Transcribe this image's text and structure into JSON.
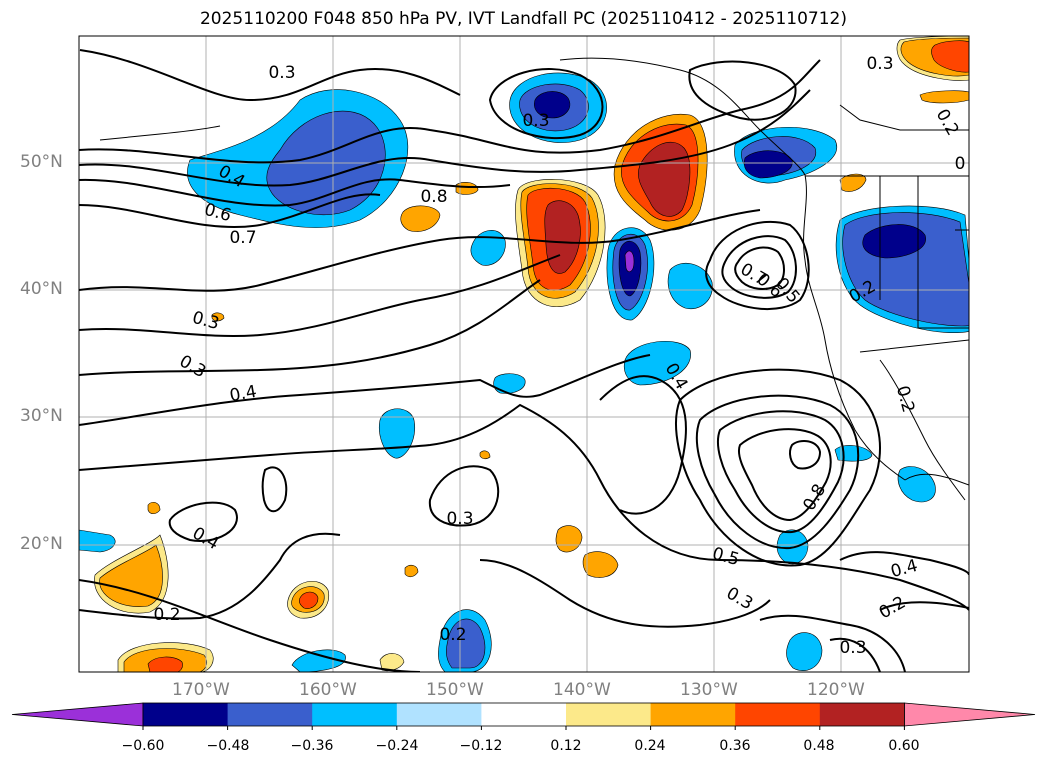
{
  "title": "2025110200 F048 850 hPa PV, IVT Landfall PC (2025110412 - 2025110712)",
  "lon_ticks": [
    {
      "value": -170,
      "label": "170°W"
    },
    {
      "value": -160,
      "label": "160°W"
    },
    {
      "value": -150,
      "label": "150°W"
    },
    {
      "value": -140,
      "label": "140°W"
    },
    {
      "value": -130,
      "label": "130°W"
    },
    {
      "value": -120,
      "label": "120°W"
    }
  ],
  "lat_ticks": [
    {
      "value": 50,
      "label": "50°N"
    },
    {
      "value": 40,
      "label": "40°N"
    },
    {
      "value": 30,
      "label": "30°N"
    },
    {
      "value": 20,
      "label": "20°N"
    }
  ],
  "colorbar": {
    "levels": [
      "−0.60",
      "−0.48",
      "−0.36",
      "−0.24",
      "−0.12",
      "0.12",
      "0.24",
      "0.36",
      "0.48",
      "0.60"
    ],
    "under_color": "#9b30d9",
    "over_color": "#ff88aa",
    "colors": [
      "#00008b",
      "#3a5fcd",
      "#00bfff",
      "#b0e2ff",
      "#ffffff",
      "#fce98a",
      "#ffa500",
      "#ff4500",
      "#b22222"
    ]
  },
  "contour_labels": [
    {
      "text": "0.3"
    },
    {
      "text": "0.3"
    },
    {
      "text": "0.3"
    },
    {
      "text": "0.4"
    },
    {
      "text": "0.6"
    },
    {
      "text": "0.7"
    },
    {
      "text": "0.8"
    },
    {
      "text": "0.3"
    },
    {
      "text": "0.3"
    },
    {
      "text": "0.4"
    },
    {
      "text": "0.4"
    },
    {
      "text": "0.3"
    },
    {
      "text": "0.2"
    },
    {
      "text": "0.2"
    },
    {
      "text": "0.7"
    },
    {
      "text": "0.6"
    },
    {
      "text": "0.5"
    },
    {
      "text": "0.2"
    },
    {
      "text": "0.2"
    },
    {
      "text": "0.4"
    },
    {
      "text": "0.8"
    },
    {
      "text": "0.5"
    },
    {
      "text": "0.3"
    },
    {
      "text": "0.4"
    },
    {
      "text": "0.2"
    },
    {
      "text": "0.3"
    },
    {
      "text": "0.2"
    },
    {
      "text": "0"
    }
  ]
}
